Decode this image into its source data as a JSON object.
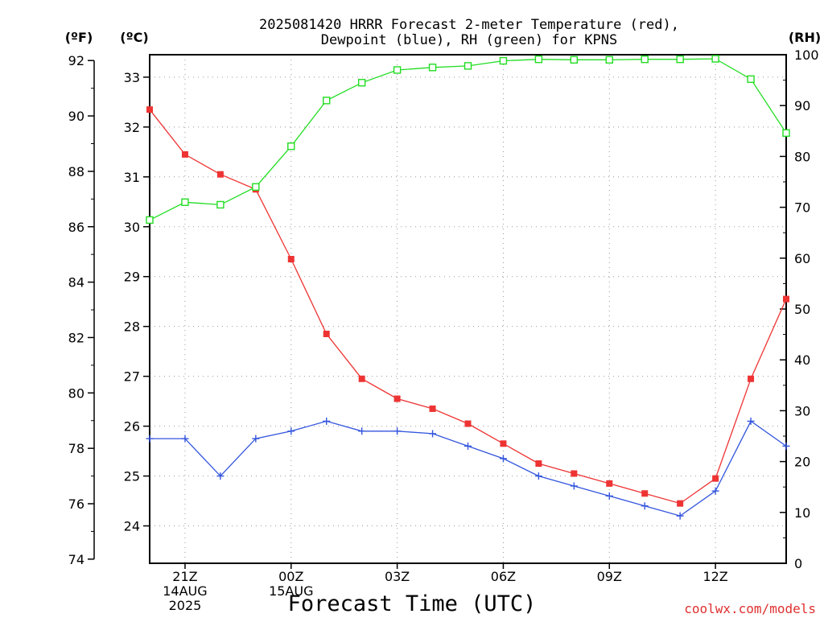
{
  "chart_data": {
    "type": "line",
    "title_lines": [
      "2025081420 HRRR Forecast 2-meter Temperature (red),",
      "Dewpoint (blue), RH (green) for KPNS"
    ],
    "xlabel": "Forecast Time (UTC)",
    "credit": "coolwx.com/models",
    "units": {
      "fahrenheit": "(ºF)",
      "celsius": "(ºC)",
      "rh": "(RH)"
    },
    "x_ticks": [
      {
        "hour": 1,
        "lines": [
          "21Z",
          "14AUG",
          "2025"
        ]
      },
      {
        "hour": 4,
        "lines": [
          "00Z",
          "15AUG"
        ]
      },
      {
        "hour": 7,
        "lines": [
          "03Z"
        ]
      },
      {
        "hour": 10,
        "lines": [
          "06Z"
        ]
      },
      {
        "hour": 13,
        "lines": [
          "09Z"
        ]
      },
      {
        "hour": 16,
        "lines": [
          "12Z"
        ]
      }
    ],
    "x_range": [
      0,
      18
    ],
    "celsius_range": [
      23.25,
      33.45
    ],
    "celsius_ticks": [
      "24",
      "25",
      "26",
      "27",
      "28",
      "29",
      "30",
      "31",
      "32",
      "33"
    ],
    "fahrenheit_ticks": [
      "74",
      "76",
      "78",
      "80",
      "82",
      "84",
      "86",
      "88",
      "90",
      "92"
    ],
    "rh_range": [
      0,
      100
    ],
    "rh_ticks": [
      "0",
      "10",
      "20",
      "30",
      "40",
      "50",
      "60",
      "70",
      "80",
      "90",
      "100"
    ],
    "grid": true,
    "series": [
      {
        "name": "Temperature",
        "color": "#ee3333",
        "axis": "celsius",
        "marker": "filled-square",
        "x": [
          0,
          1,
          2,
          3,
          4,
          5,
          6,
          7,
          8,
          9,
          10,
          11,
          12,
          13,
          14,
          15,
          16,
          17,
          18
        ],
        "values": [
          32.35,
          31.45,
          31.05,
          30.75,
          29.35,
          27.85,
          26.95,
          26.55,
          26.35,
          26.05,
          25.65,
          25.25,
          25.05,
          24.85,
          24.65,
          24.45,
          24.95,
          26.95,
          28.55
        ]
      },
      {
        "name": "Dewpoint",
        "color": "#3355dd",
        "axis": "celsius",
        "marker": "plus",
        "x": [
          0,
          1,
          2,
          3,
          4,
          5,
          6,
          7,
          8,
          9,
          10,
          11,
          12,
          13,
          14,
          15,
          16,
          17,
          18
        ],
        "values": [
          25.75,
          25.75,
          25.0,
          25.75,
          25.9,
          26.1,
          25.9,
          25.9,
          25.85,
          25.6,
          25.35,
          25.0,
          24.8,
          24.6,
          24.4,
          24.2,
          24.7,
          26.1,
          25.6
        ]
      },
      {
        "name": "RH",
        "color": "#22dd22",
        "axis": "rh",
        "marker": "open-square",
        "x": [
          0,
          1,
          2,
          3,
          4,
          5,
          6,
          7,
          8,
          9,
          10,
          11,
          12,
          13,
          14,
          15,
          16,
          17,
          18
        ],
        "values": [
          67.5,
          71,
          70.5,
          74,
          82,
          91,
          94.5,
          97,
          97.5,
          97.8,
          98.8,
          99.1,
          99.0,
          99.0,
          99.1,
          99.1,
          99.2,
          95.2,
          84.6
        ]
      }
    ]
  }
}
